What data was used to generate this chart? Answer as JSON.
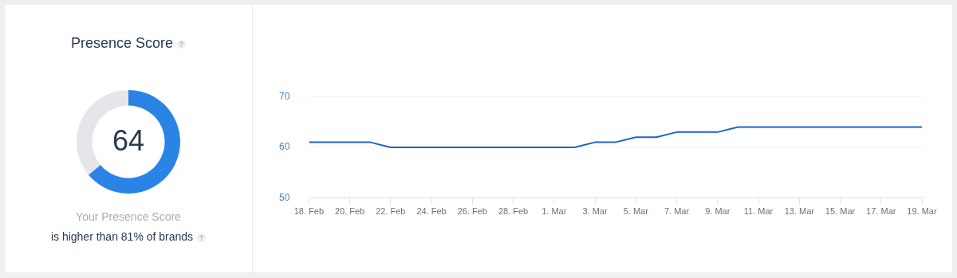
{
  "chart_data": [
    {
      "type": "donut",
      "title": "Presence Score",
      "categories": [
        null,
        null
      ],
      "values": [
        64,
        36
      ],
      "colors": [
        "#2a84e6",
        "#e4e6e9"
      ],
      "value_labels": [
        "64",
        null
      ],
      "annotations": [
        "Your Presence Score",
        "is higher than 81% of brands"
      ],
      "legend": false
    },
    {
      "type": "line",
      "x": [
        "--02-18",
        "--02-19",
        "--02-20",
        "--02-21",
        "--02-22",
        "--02-23",
        "--02-24",
        "--02-25",
        "--02-26",
        "--02-27",
        "--02-28",
        "--02-29",
        "--03-01",
        "--03-02",
        "--03-03",
        "--03-04",
        "--03-05",
        "--03-06",
        "--03-07",
        "--03-08",
        "--03-09",
        "--03-10",
        "--03-11",
        "--03-12",
        "--03-13",
        "--03-14",
        "--03-15",
        "--03-16",
        "--03-17",
        "--03-18",
        "--03-19"
      ],
      "series": [
        {
          "color": "#1f63c6",
          "values": [
            61,
            61,
            61,
            61,
            60,
            60,
            60,
            60,
            60,
            60,
            60,
            60,
            60,
            60,
            61,
            61,
            62,
            62,
            63,
            63,
            63,
            64,
            64,
            64,
            64,
            64,
            64,
            64,
            64,
            64,
            64
          ]
        }
      ],
      "xlim": [
        "--02-18",
        "--03-19"
      ],
      "xticks": [
        {
          "value": "--02-18",
          "label": "18. Feb"
        },
        {
          "value": "--02-20",
          "label": "20. Feb"
        },
        {
          "value": "--02-22",
          "label": "22. Feb"
        },
        {
          "value": "--02-24",
          "label": "24. Feb"
        },
        {
          "value": "--02-26",
          "label": "26. Feb"
        },
        {
          "value": "--02-28",
          "label": "28. Feb"
        },
        {
          "value": "--03-01",
          "label": "1. Mar"
        },
        {
          "value": "--03-03",
          "label": "3. Mar"
        },
        {
          "value": "--03-05",
          "label": "5. Mar"
        },
        {
          "value": "--03-07",
          "label": "7. Mar"
        },
        {
          "value": "--03-09",
          "label": "9. Mar"
        },
        {
          "value": "--03-11",
          "label": "11. Mar"
        },
        {
          "value": "--03-13",
          "label": "13. Mar"
        },
        {
          "value": "--03-15",
          "label": "15. Mar"
        },
        {
          "value": "--03-17",
          "label": "17. Mar"
        },
        {
          "value": "--03-19",
          "label": "19. Mar"
        }
      ],
      "ylim": [
        50,
        70
      ],
      "yticks": [
        50,
        60,
        70
      ],
      "grid": "y",
      "legend": false,
      "marker": "none",
      "line_style": "solid"
    }
  ]
}
